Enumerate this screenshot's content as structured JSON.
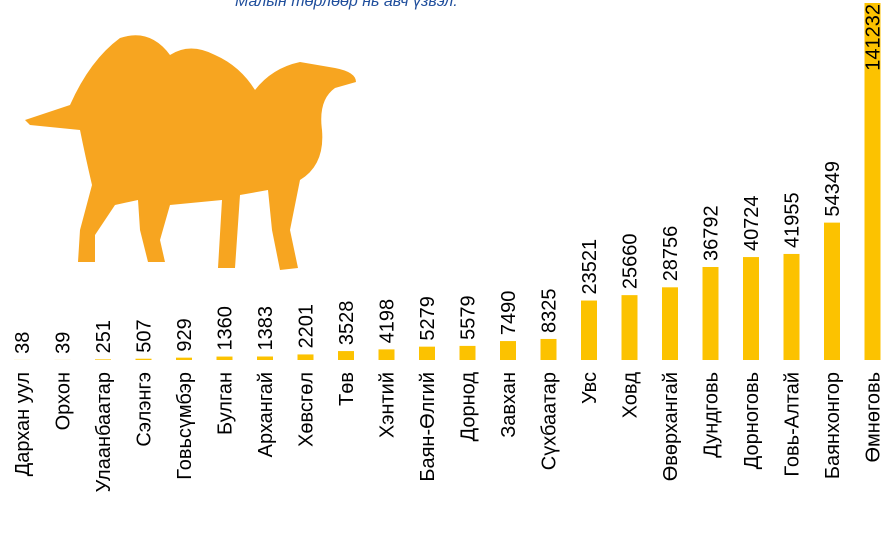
{
  "chart_data": {
    "type": "bar",
    "subtitle": "Малын төрлөөр нь авч үзвэл.",
    "categories": [
      "Дархан уул",
      "Орхон",
      "Улаанбаатар",
      "Сэлэнгэ",
      "Говьсүмбэр",
      "Булган",
      "Архангай",
      "Хөвсгөл",
      "Төв",
      "Хэнтий",
      "Баян-Өлгий",
      "Дорнод",
      "Завхан",
      "Сүхбаатар",
      "Увс",
      "Ховд",
      "Өвөрхангай",
      "Дундговь",
      "Дорноговь",
      "Говь-Алтай",
      "Баянхонгор",
      "Өмнөговь"
    ],
    "values": [
      38,
      39,
      251,
      507,
      929,
      1360,
      1383,
      2201,
      3528,
      4198,
      5279,
      5579,
      7490,
      8325,
      23521,
      25660,
      28756,
      36792,
      40724,
      41955,
      54349,
      141232
    ],
    "color": "#fcc200"
  }
}
